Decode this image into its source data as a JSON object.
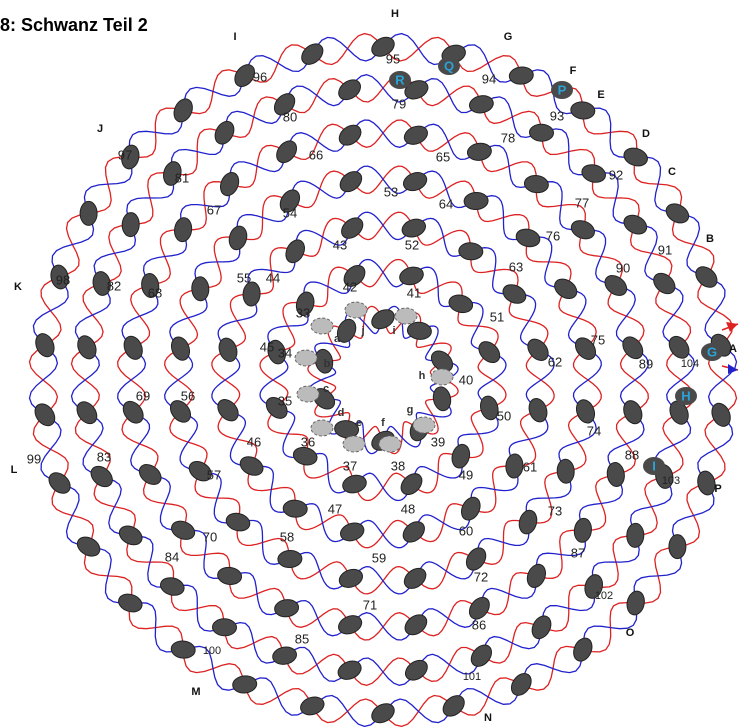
{
  "title": "8: Schwanz Teil 2",
  "numbers": [
    33,
    34,
    35,
    36,
    37,
    38,
    39,
    40,
    41,
    42,
    43,
    44,
    45,
    46,
    47,
    48,
    49,
    50,
    51,
    52,
    53,
    54,
    55,
    56,
    57,
    58,
    59,
    60,
    61,
    62,
    63,
    64,
    65,
    66,
    67,
    68,
    69,
    70,
    71,
    72,
    73,
    74,
    75,
    76,
    77,
    78,
    79,
    80,
    81,
    82,
    83,
    84,
    85,
    86,
    87,
    88,
    89,
    90,
    91,
    92,
    93,
    94,
    95,
    96,
    97,
    98,
    99,
    100,
    101,
    102,
    103,
    104
  ],
  "letters": [
    "H",
    "G",
    "F",
    "E",
    "D",
    "C",
    "B",
    "A",
    "P",
    "O",
    "N",
    "M",
    "L",
    "K",
    "J",
    "I"
  ],
  "pin_letters": [
    "a",
    "b",
    "c",
    "d",
    "e",
    "f",
    "g",
    "h",
    "i",
    "j"
  ],
  "markers": [
    "R",
    "Q",
    "P",
    "G",
    "H",
    "I"
  ]
}
